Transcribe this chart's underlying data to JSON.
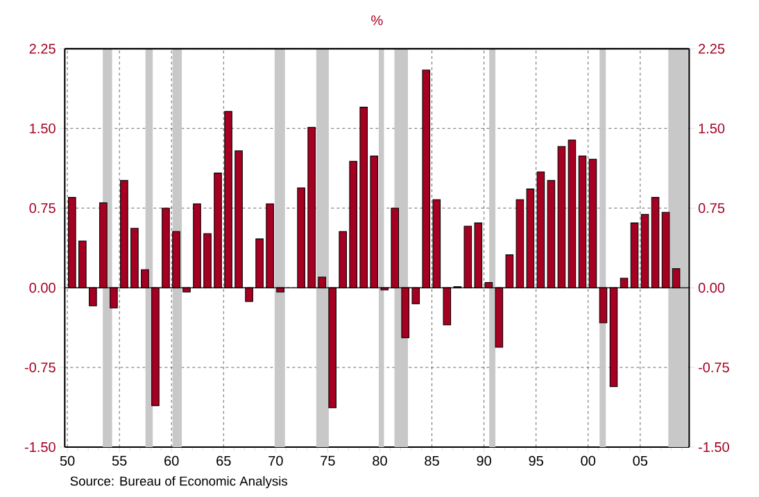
{
  "chart_data": {
    "type": "bar",
    "title": "%",
    "color": "#a50021",
    "x": [
      1950.45,
      1951.45,
      1952.45,
      1953.45,
      1954.45,
      1955.45,
      1956.45,
      1957.45,
      1958.45,
      1959.45,
      1960.45,
      1961.45,
      1962.45,
      1963.45,
      1964.45,
      1965.45,
      1966.45,
      1967.45,
      1968.45,
      1969.45,
      1970.45,
      1971.45,
      1972.45,
      1973.45,
      1974.45,
      1975.45,
      1976.45,
      1977.45,
      1978.45,
      1979.45,
      1980.45,
      1981.45,
      1982.45,
      1983.45,
      1984.45,
      1985.45,
      1986.45,
      1987.45,
      1988.45,
      1989.45,
      1990.45,
      1991.45,
      1992.45,
      1993.45,
      1994.45,
      1995.45,
      1996.45,
      1997.45,
      1998.45,
      1999.45,
      2000.45,
      2001.45,
      2002.45,
      2003.45,
      2004.45,
      2005.45,
      2006.45,
      2007.45,
      2008.45
    ],
    "values": [
      0.85,
      0.44,
      -0.17,
      0.8,
      -0.19,
      1.01,
      0.56,
      0.17,
      -1.11,
      0.75,
      0.53,
      -0.04,
      0.79,
      0.51,
      1.08,
      1.66,
      1.29,
      -0.13,
      0.46,
      0.79,
      -0.04,
      null,
      0.94,
      1.51,
      0.1,
      -1.13,
      0.53,
      1.19,
      1.7,
      1.24,
      -0.02,
      0.75,
      -0.47,
      -0.15,
      2.05,
      0.83,
      -0.35,
      0.01,
      0.58,
      0.61,
      0.05,
      -0.56,
      0.31,
      0.83,
      0.93,
      1.09,
      1.01,
      1.33,
      1.39,
      1.24,
      1.21,
      -0.33,
      -0.93,
      0.09,
      0.61,
      0.69,
      0.85,
      0.71,
      0.18
    ],
    "xlim": [
      1949.75,
      2009.7
    ],
    "xticks": [
      {
        "value": 1950,
        "label": "50"
      },
      {
        "value": 1951,
        "label": null
      },
      {
        "value": 1952,
        "label": null
      },
      {
        "value": 1953,
        "label": null
      },
      {
        "value": 1954,
        "label": null
      },
      {
        "value": 1955,
        "label": "55"
      },
      {
        "value": 1956,
        "label": null
      },
      {
        "value": 1957,
        "label": null
      },
      {
        "value": 1958,
        "label": null
      },
      {
        "value": 1959,
        "label": null
      },
      {
        "value": 1960,
        "label": "60"
      },
      {
        "value": 1961,
        "label": null
      },
      {
        "value": 1962,
        "label": null
      },
      {
        "value": 1963,
        "label": null
      },
      {
        "value": 1964,
        "label": null
      },
      {
        "value": 1965,
        "label": "65"
      },
      {
        "value": 1966,
        "label": null
      },
      {
        "value": 1967,
        "label": null
      },
      {
        "value": 1968,
        "label": null
      },
      {
        "value": 1969,
        "label": null
      },
      {
        "value": 1970,
        "label": "70"
      },
      {
        "value": 1971,
        "label": null
      },
      {
        "value": 1972,
        "label": null
      },
      {
        "value": 1973,
        "label": null
      },
      {
        "value": 1974,
        "label": null
      },
      {
        "value": 1975,
        "label": "75"
      },
      {
        "value": 1976,
        "label": null
      },
      {
        "value": 1977,
        "label": null
      },
      {
        "value": 1978,
        "label": null
      },
      {
        "value": 1979,
        "label": null
      },
      {
        "value": 1980,
        "label": "80"
      },
      {
        "value": 1981,
        "label": null
      },
      {
        "value": 1982,
        "label": null
      },
      {
        "value": 1983,
        "label": null
      },
      {
        "value": 1984,
        "label": null
      },
      {
        "value": 1985,
        "label": "85"
      },
      {
        "value": 1986,
        "label": null
      },
      {
        "value": 1987,
        "label": null
      },
      {
        "value": 1988,
        "label": null
      },
      {
        "value": 1989,
        "label": null
      },
      {
        "value": 1990,
        "label": "90"
      },
      {
        "value": 1991,
        "label": null
      },
      {
        "value": 1992,
        "label": null
      },
      {
        "value": 1993,
        "label": null
      },
      {
        "value": 1994,
        "label": null
      },
      {
        "value": 1995,
        "label": "95"
      },
      {
        "value": 1996,
        "label": null
      },
      {
        "value": 1997,
        "label": null
      },
      {
        "value": 1998,
        "label": null
      },
      {
        "value": 1999,
        "label": null
      },
      {
        "value": 2000,
        "label": "00"
      },
      {
        "value": 2001,
        "label": null
      },
      {
        "value": 2002,
        "label": null
      },
      {
        "value": 2003,
        "label": null
      },
      {
        "value": 2004,
        "label": null
      },
      {
        "value": 2005,
        "label": "05"
      },
      {
        "value": 2006,
        "label": null
      },
      {
        "value": 2007,
        "label": null
      },
      {
        "value": 2008,
        "label": null
      },
      {
        "value": 2009,
        "label": null
      }
    ],
    "ylim": [
      -1.5,
      2.25
    ],
    "yticks": [
      {
        "value": -1.5,
        "label": "-1.50"
      },
      {
        "value": -0.75,
        "label": "-0.75"
      },
      {
        "value": 0,
        "label": "0.00"
      },
      {
        "value": 0.75,
        "label": "0.75"
      },
      {
        "value": 1.5,
        "label": "1.50"
      },
      {
        "value": 2.25,
        "label": "2.25"
      }
    ],
    "y2lim": [
      -1.5,
      2.25
    ],
    "y2ticks": [
      {
        "value": -1.5,
        "label": "-1.50"
      },
      {
        "value": -0.75,
        "label": "-0.75"
      },
      {
        "value": 0,
        "label": "0.00"
      },
      {
        "value": 0.75,
        "label": "0.75"
      },
      {
        "value": 1.5,
        "label": "1.50"
      },
      {
        "value": 2.25,
        "label": "2.25"
      }
    ],
    "grid": true,
    "bands": [
      {
        "axis": "x",
        "from": 1953.4,
        "to": 1954.3,
        "color": "#c8c8c8"
      },
      {
        "axis": "x",
        "from": 1957.5,
        "to": 1958.2,
        "color": "#c8c8c8"
      },
      {
        "axis": "x",
        "from": 1960.1,
        "to": 1961.0,
        "color": "#c8c8c8"
      },
      {
        "axis": "x",
        "from": 1969.9,
        "to": 1970.9,
        "color": "#c8c8c8"
      },
      {
        "axis": "x",
        "from": 1973.9,
        "to": 1975.1,
        "color": "#c8c8c8"
      },
      {
        "axis": "x",
        "from": 1979.9,
        "to": 1980.4,
        "color": "#c8c8c8"
      },
      {
        "axis": "x",
        "from": 1981.4,
        "to": 1982.7,
        "color": "#c8c8c8"
      },
      {
        "axis": "x",
        "from": 1990.5,
        "to": 1991.1,
        "color": "#c8c8c8"
      },
      {
        "axis": "x",
        "from": 2001.1,
        "to": 2001.7,
        "color": "#c8c8c8"
      },
      {
        "axis": "x",
        "from": 2007.7,
        "to": 2009.6,
        "color": "#c8c8c8"
      }
    ],
    "annotations": [
      "Source:  Bureau of Economic Analysis"
    ]
  }
}
